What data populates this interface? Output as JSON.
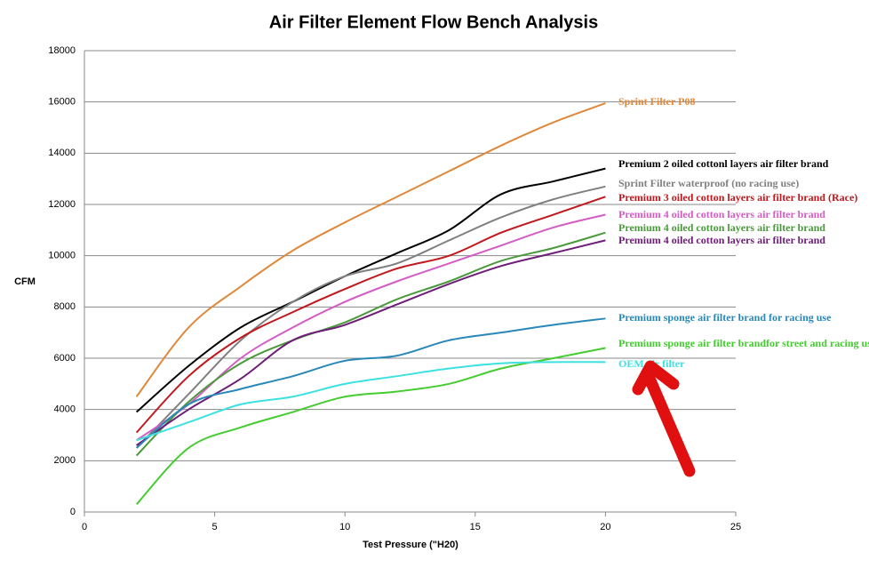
{
  "chart_data": {
    "type": "line",
    "title": "Air Filter Element Flow Bench Analysis",
    "x_label": "Test Pressure (\"H20)",
    "y_label": "CFM",
    "x": [
      2,
      4,
      6,
      8,
      10,
      12,
      14,
      16,
      18,
      20
    ],
    "xlim": [
      0,
      25
    ],
    "xticks": [
      0,
      5,
      10,
      15,
      20,
      25
    ],
    "ylim": [
      0,
      18000
    ],
    "yticks": [
      0,
      2000,
      4000,
      6000,
      8000,
      10000,
      12000,
      14000,
      16000,
      18000
    ],
    "grid": true,
    "smooth": true,
    "series": [
      {
        "name": "Sprint Filter P08",
        "color": "#e0883a",
        "values": [
          4500,
          7200,
          8800,
          10200,
          11300,
          12300,
          13300,
          14300,
          15200,
          15950
        ]
      },
      {
        "name": "Premium 2 oiled cottonl layers  air filter brand",
        "color": "#000000",
        "values": [
          3900,
          5700,
          7200,
          8200,
          9200,
          10100,
          11000,
          12400,
          12900,
          13400
        ]
      },
      {
        "name": "Sprint Filter waterproof (no racing use)",
        "color": "#808080",
        "values": [
          2500,
          4600,
          6700,
          8200,
          9200,
          9700,
          10600,
          11500,
          12200,
          12700
        ]
      },
      {
        "name": "Premium 3 oiled cotton layers air filter brand (Race)",
        "color": "#c0181c",
        "values": [
          3100,
          5300,
          6800,
          7800,
          8700,
          9500,
          10000,
          10900,
          11600,
          12300
        ]
      },
      {
        "name": "Premium 4  oiled cotton layers air filter brand",
        "color": "#d45cc4",
        "values": [
          2800,
          4200,
          6000,
          7200,
          8200,
          9000,
          9700,
          10400,
          11100,
          11600
        ]
      },
      {
        "name": "Premium 4  oiled cotton layers air filter brand",
        "color": "#4a9a3c",
        "values": [
          2200,
          4300,
          5800,
          6700,
          7400,
          8300,
          9000,
          9800,
          10300,
          10900
        ]
      },
      {
        "name": "Premium 4 oiled cotton layers air filter brand",
        "color": "#6e1e78",
        "values": [
          2600,
          4000,
          5200,
          6700,
          7300,
          8100,
          8900,
          9600,
          10100,
          10600
        ]
      },
      {
        "name": "Premium sponge air filter brand for racing use",
        "color": "#2a88b8",
        "values": [
          2500,
          4200,
          4800,
          5300,
          5900,
          6100,
          6700,
          7000,
          7300,
          7550
        ]
      },
      {
        "name": "Premium sponge air filter brandfor street and racing use",
        "color": "#44cc30",
        "values": [
          300,
          2500,
          3300,
          3900,
          4500,
          4700,
          5000,
          5600,
          6000,
          6400
        ]
      },
      {
        "name": "OEM air filter",
        "color": "#3ee0e0",
        "values": [
          2800,
          3500,
          4200,
          4500,
          5000,
          5300,
          5600,
          5800,
          5850,
          5850
        ]
      }
    ]
  }
}
